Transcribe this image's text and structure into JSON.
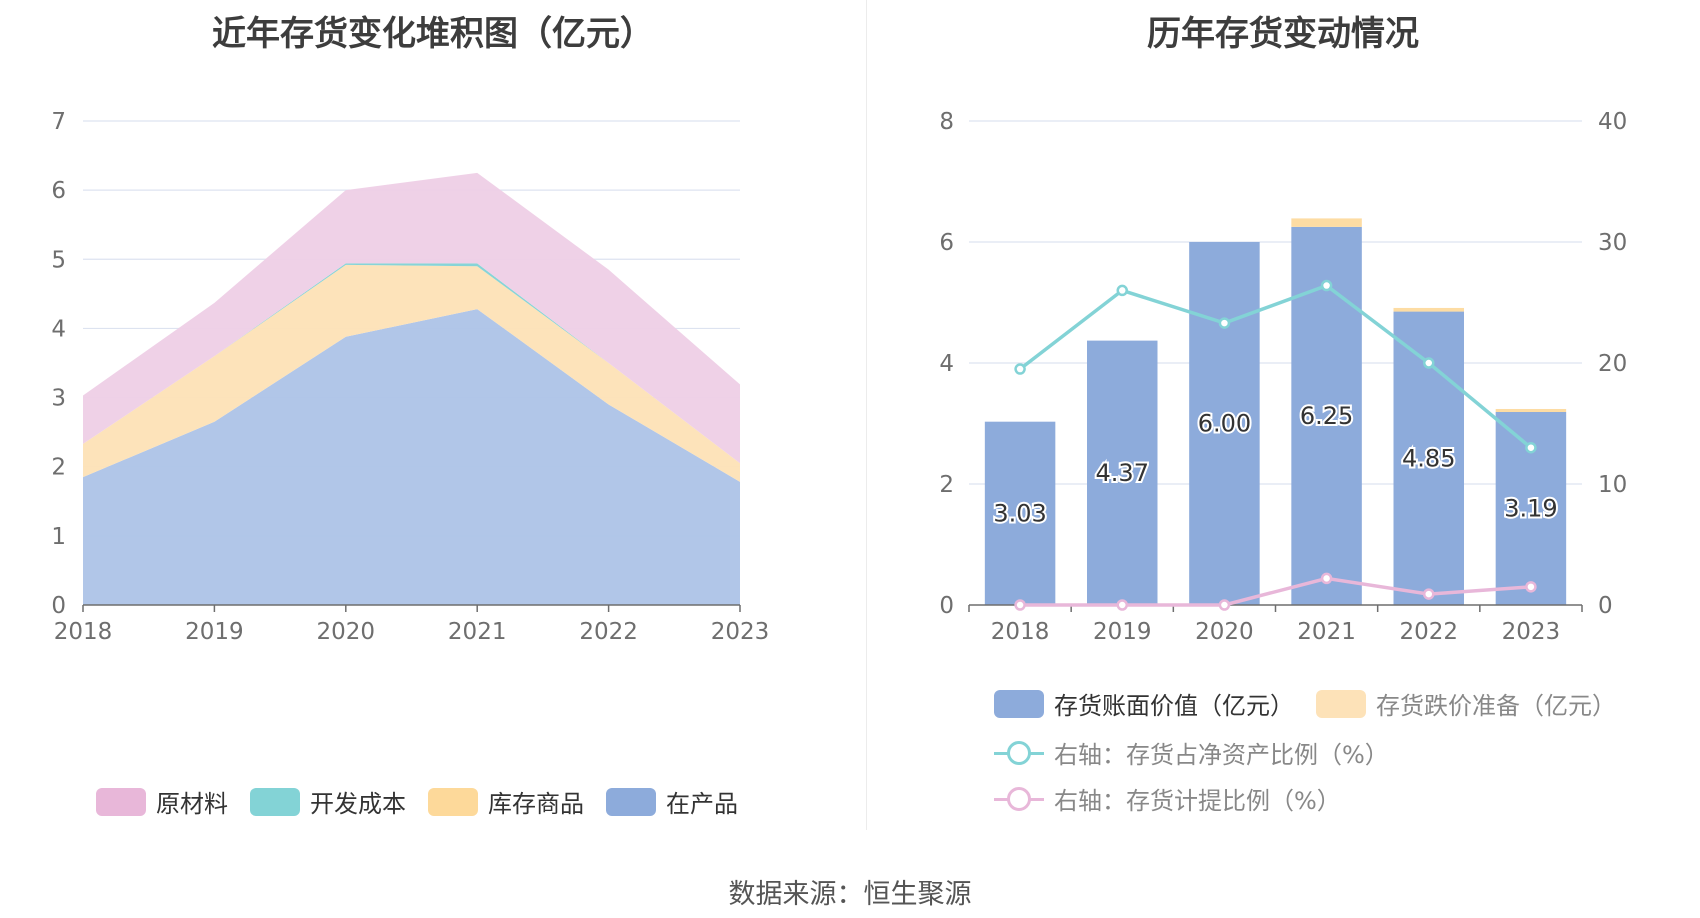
{
  "left": {
    "title": "近年存货变化堆积图（亿元）",
    "legend": [
      {
        "name": "原材料",
        "color": "#e8b7d9"
      },
      {
        "name": "开发成本",
        "color": "#83d3d6"
      },
      {
        "name": "库存商品",
        "color": "#fdd99a"
      },
      {
        "name": "在产品",
        "color": "#8dabdb"
      }
    ]
  },
  "right": {
    "title": "历年存货变动情况",
    "legend": [
      {
        "name": "存货账面价值（亿元）",
        "color": "#8dabdb",
        "kind": "box"
      },
      {
        "name": "存货跌价准备（亿元）",
        "color": "#fde2b8",
        "kind": "box"
      },
      {
        "name": "右轴：存货占净资产比例（%）",
        "color": "#83d3d6",
        "kind": "line"
      },
      {
        "name": "右轴：存货计提比例（%）",
        "color": "#e8b7d9",
        "kind": "line"
      }
    ]
  },
  "source": "数据来源：恒生聚源",
  "chart_data": [
    {
      "type": "area",
      "title": "近年存货变化堆积图（亿元）",
      "x": [
        "2018",
        "2019",
        "2020",
        "2021",
        "2022",
        "2023"
      ],
      "stacked": true,
      "ylim": [
        0,
        7
      ],
      "yticks": [
        0,
        1,
        2,
        3,
        4,
        5,
        6,
        7
      ],
      "series": [
        {
          "name": "在产品",
          "values": [
            1.85,
            2.65,
            3.88,
            4.28,
            2.9,
            1.78
          ],
          "color": "#aec4e7"
        },
        {
          "name": "库存商品",
          "values": [
            0.48,
            0.95,
            1.04,
            0.62,
            0.6,
            0.27
          ],
          "color": "#fde2b8"
        },
        {
          "name": "开发成本",
          "values": [
            0,
            0,
            0.02,
            0.04,
            0,
            0
          ],
          "color": "#83d3d6"
        },
        {
          "name": "原材料",
          "values": [
            0.7,
            0.77,
            1.06,
            1.31,
            1.35,
            1.14
          ],
          "color": "#eed0e6"
        }
      ],
      "legend_position": "bottom",
      "grid": true
    },
    {
      "type": "bar",
      "title": "历年存货变动情况",
      "categories": [
        "2018",
        "2019",
        "2020",
        "2021",
        "2022",
        "2023"
      ],
      "ylim": [
        0,
        8
      ],
      "yticks": [
        0,
        2,
        4,
        6,
        8
      ],
      "y2lim": [
        0,
        40
      ],
      "y2ticks": [
        0,
        10,
        20,
        30,
        40
      ],
      "series": [
        {
          "name": "存货账面价值（亿元）",
          "type": "bar",
          "stack": "a",
          "values": [
            3.03,
            4.37,
            6.0,
            6.25,
            4.85,
            3.19
          ],
          "labels": [
            "3.03",
            "4.37",
            "6.00",
            "6.25",
            "4.85",
            "3.19"
          ],
          "color": "#8dabdb"
        },
        {
          "name": "存货跌价准备（亿元）",
          "type": "bar",
          "stack": "a",
          "values": [
            0,
            0,
            0,
            0.14,
            0.06,
            0.05
          ],
          "color": "#fddca3"
        },
        {
          "name": "右轴：存货占净资产比例（%）",
          "type": "line",
          "axis": "right",
          "values": [
            19.5,
            26.0,
            23.3,
            26.4,
            20.0,
            13.0
          ],
          "color": "#83d3d6"
        },
        {
          "name": "右轴：存货计提比例（%）",
          "type": "line",
          "axis": "right",
          "values": [
            0,
            0,
            0,
            2.2,
            0.9,
            1.5
          ],
          "color": "#e8b7d9"
        }
      ],
      "legend_position": "bottom",
      "grid": true
    }
  ]
}
